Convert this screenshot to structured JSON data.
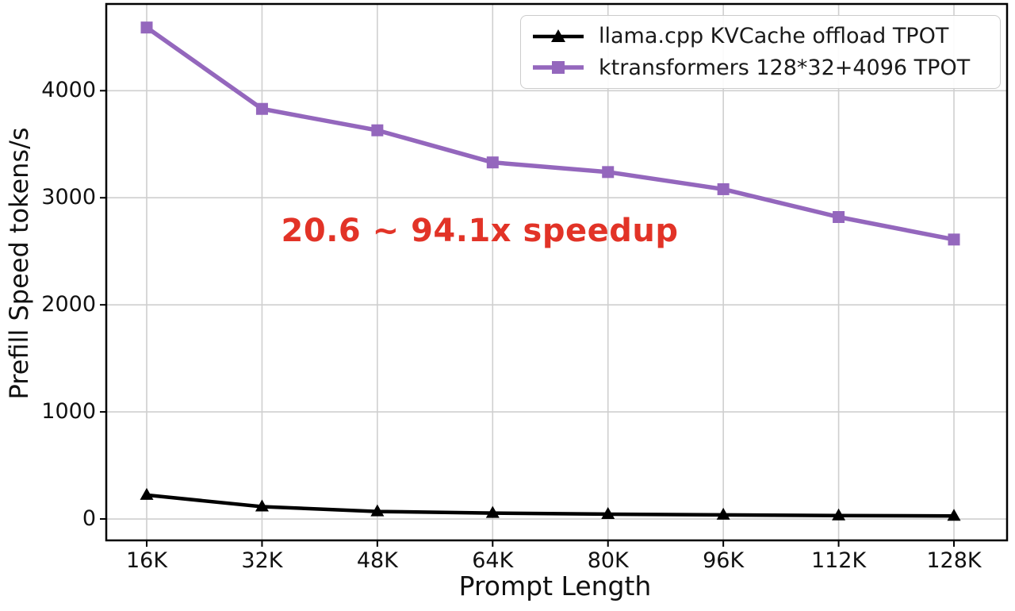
{
  "chart_data": {
    "type": "line",
    "title": "",
    "xlabel": "Prompt Length",
    "ylabel": "Prefill Speed tokens/s",
    "x_categories": [
      "16K",
      "32K",
      "48K",
      "64K",
      "80K",
      "96K",
      "112K",
      "128K"
    ],
    "y_ticks": [
      0,
      1000,
      2000,
      3000,
      4000
    ],
    "ylim": [
      -200,
      4810
    ],
    "grid": true,
    "legend_position": "top-right",
    "series": [
      {
        "name": "llama.cpp KVCache offload TPOT",
        "color": "#000000",
        "marker": "triangle",
        "line_width": 4.5,
        "values": [
          223,
          115,
          70,
          55,
          45,
          38,
          32,
          28
        ]
      },
      {
        "name": "ktransformers 128*32+4096 TPOT",
        "color": "#9467bd",
        "marker": "square",
        "line_width": 5.5,
        "values": [
          4590,
          3830,
          3630,
          3330,
          3240,
          3080,
          2820,
          2610
        ]
      }
    ],
    "annotation": {
      "text": "20.6 ~ 94.1x speedup",
      "color": "#e23327"
    },
    "colors": {
      "grid": "#cfcfcf",
      "spine": "#000000",
      "background": "#ffffff",
      "tick_text": "#111111"
    }
  }
}
